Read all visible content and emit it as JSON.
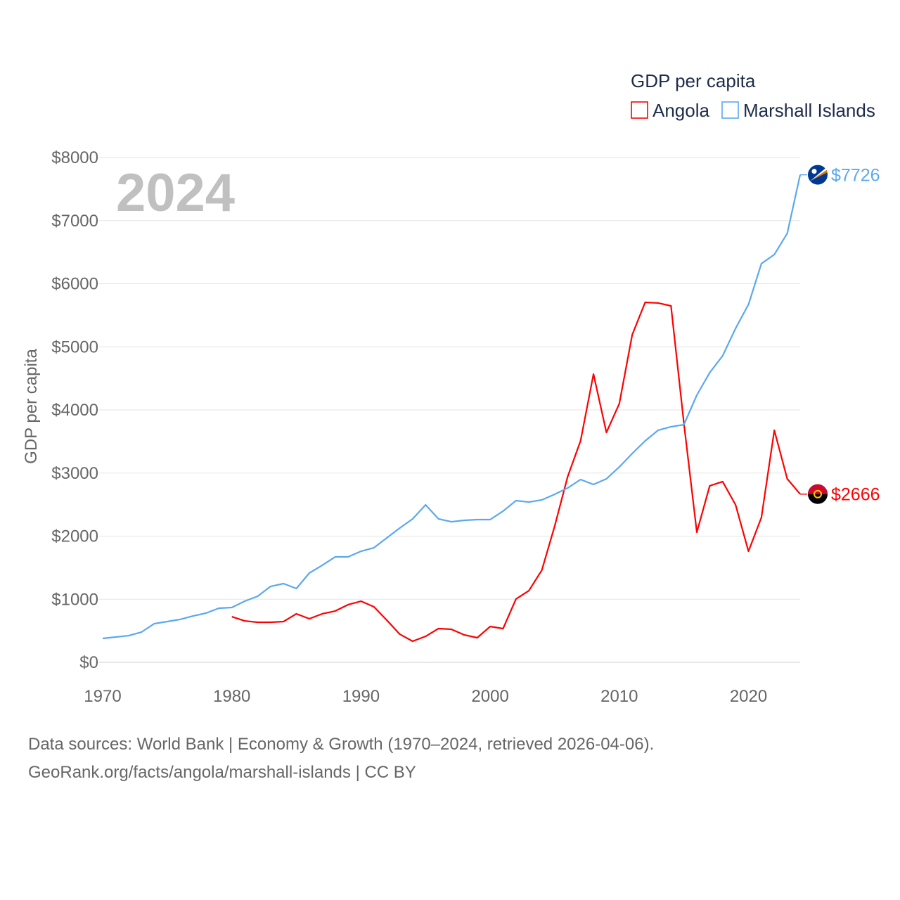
{
  "chart_data": {
    "type": "line",
    "title": "",
    "year_label": "2024",
    "xlabel": "",
    "ylabel": "GDP per capita",
    "xlim": [
      1970,
      2024
    ],
    "ylim": [
      0,
      8000
    ],
    "grid": true,
    "legend": {
      "title": "GDP per capita",
      "position": "top-right"
    },
    "x_ticks": [
      "1970",
      "1980",
      "1990",
      "2000",
      "2010",
      "2020"
    ],
    "y_ticks": [
      "$0",
      "$1000",
      "$2000",
      "$3000",
      "$4000",
      "$5000",
      "$6000",
      "$7000",
      "$8000"
    ],
    "series": [
      {
        "name": "Angola",
        "color": "#ff0000",
        "end_label": "$2666",
        "flag_icon": "angola-flag",
        "start_year": 1980,
        "values": [
          724,
          657,
          635,
          635,
          646,
          769,
          691,
          769,
          813,
          914,
          969,
          880,
          669,
          446,
          334,
          412,
          535,
          524,
          435,
          390,
          568,
          535,
          1003,
          1136,
          1460,
          2162,
          2942,
          3510,
          4568,
          3643,
          4100,
          5192,
          5705,
          5694,
          5649,
          3788,
          2061,
          2797,
          2864,
          2496,
          1760,
          2295,
          3677,
          2908,
          2666
        ]
      },
      {
        "name": "Marshall Islands",
        "color": "#5ba8f0",
        "end_label": "$7726",
        "flag_icon": "marshall-islands-flag",
        "start_year": 1970,
        "values": [
          379,
          401,
          423,
          479,
          613,
          646,
          680,
          735,
          780,
          858,
          869,
          969,
          1047,
          1203,
          1248,
          1170,
          1415,
          1538,
          1671,
          1671,
          1760,
          1816,
          1972,
          2128,
          2273,
          2496,
          2273,
          2228,
          2251,
          2262,
          2262,
          2396,
          2563,
          2540,
          2574,
          2663,
          2763,
          2897,
          2819,
          2908,
          3097,
          3309,
          3510,
          3677,
          3733,
          3766,
          4234,
          4591,
          4858,
          5292,
          5671,
          6318,
          6462,
          6797,
          7726
        ]
      }
    ]
  },
  "footer": {
    "line1": "Data sources: World Bank | Economy & Growth (1970–2024, retrieved 2026-04-06).",
    "line2": "GeoRank.org/facts/angola/marshall-islands | CC BY"
  }
}
